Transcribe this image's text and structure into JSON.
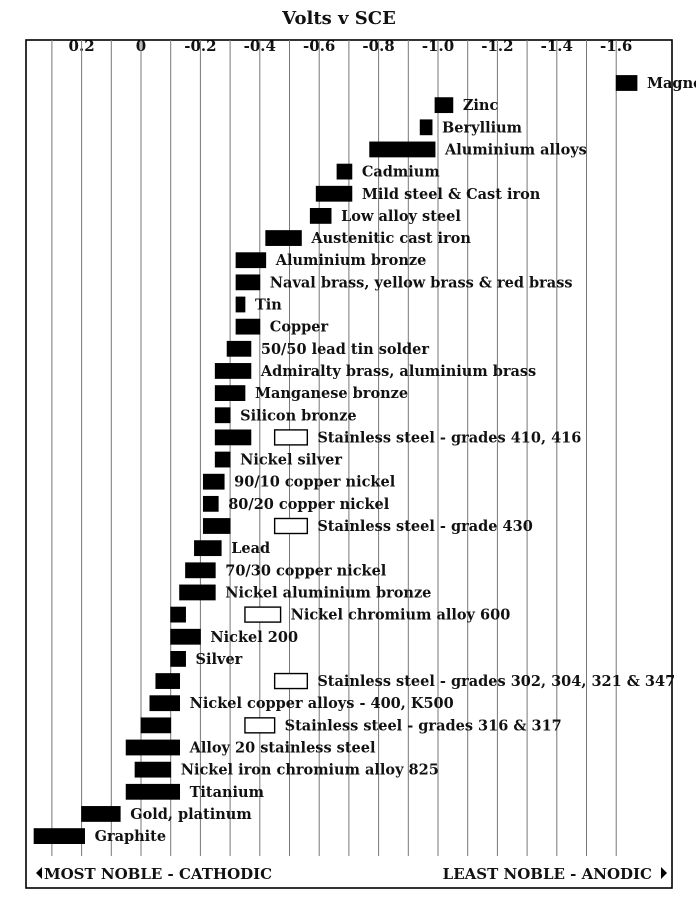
{
  "chart_data": {
    "type": "bar",
    "title": "Volts v SCE",
    "xlim": [
      0.4,
      -1.8
    ],
    "ticks": [
      "0.2",
      "0",
      "-0.2",
      "-0.4",
      "-0.6",
      "-0.8",
      "-1.0",
      "-1.2",
      "-1.4",
      "-1.6"
    ],
    "tick_values": [
      0.2,
      0,
      -0.2,
      -0.4,
      -0.6,
      -0.8,
      -1.0,
      -1.2,
      -1.4,
      -1.6
    ],
    "grid": true,
    "footer_left": "MOST NOBLE - CATHODIC",
    "footer_right": "LEAST NOBLE - ANODIC",
    "series": [
      {
        "label": "Magnesium",
        "ranges": [
          [
            -1.6,
            -1.67
          ]
        ]
      },
      {
        "label": "Zinc",
        "ranges": [
          [
            -0.99,
            -1.05
          ]
        ]
      },
      {
        "label": "Beryllium",
        "ranges": [
          [
            -0.94,
            -0.98
          ]
        ]
      },
      {
        "label": "Aluminium alloys",
        "ranges": [
          [
            -0.77,
            -0.99
          ]
        ]
      },
      {
        "label": "Cadmium",
        "ranges": [
          [
            -0.66,
            -0.71
          ]
        ]
      },
      {
        "label": "Mild steel & Cast iron",
        "ranges": [
          [
            -0.59,
            -0.71
          ]
        ]
      },
      {
        "label": "Low alloy steel",
        "ranges": [
          [
            -0.57,
            -0.64
          ]
        ]
      },
      {
        "label": "Austenitic cast iron",
        "ranges": [
          [
            -0.42,
            -0.54
          ]
        ]
      },
      {
        "label": "Aluminium bronze",
        "ranges": [
          [
            -0.32,
            -0.42
          ]
        ]
      },
      {
        "label": "Naval brass, yellow brass & red brass",
        "ranges": [
          [
            -0.32,
            -0.4
          ]
        ]
      },
      {
        "label": "Tin",
        "ranges": [
          [
            -0.32,
            -0.35
          ]
        ]
      },
      {
        "label": "Copper",
        "ranges": [
          [
            -0.32,
            -0.4
          ]
        ]
      },
      {
        "label": "50/50 lead tin solder",
        "ranges": [
          [
            -0.29,
            -0.37
          ]
        ]
      },
      {
        "label": "Admiralty brass, aluminium brass",
        "ranges": [
          [
            -0.25,
            -0.37
          ]
        ]
      },
      {
        "label": "Manganese bronze",
        "ranges": [
          [
            -0.25,
            -0.35
          ]
        ]
      },
      {
        "label": "Silicon bronze",
        "ranges": [
          [
            -0.25,
            -0.3
          ]
        ]
      },
      {
        "label": "Stainless steel - grades 410, 416",
        "ranges": [
          [
            -0.25,
            -0.37
          ],
          [
            -0.45,
            -0.56
          ]
        ]
      },
      {
        "label": "Nickel silver",
        "ranges": [
          [
            -0.25,
            -0.3
          ]
        ]
      },
      {
        "label": "90/10 copper nickel",
        "ranges": [
          [
            -0.21,
            -0.28
          ]
        ]
      },
      {
        "label": "80/20 copper nickel",
        "ranges": [
          [
            -0.21,
            -0.26
          ]
        ]
      },
      {
        "label": "Stainless steel - grade 430",
        "ranges": [
          [
            -0.21,
            -0.3
          ],
          [
            -0.45,
            -0.56
          ]
        ]
      },
      {
        "label": "Lead",
        "ranges": [
          [
            -0.18,
            -0.27
          ]
        ]
      },
      {
        "label": "70/30 copper nickel",
        "ranges": [
          [
            -0.15,
            -0.25
          ]
        ]
      },
      {
        "label": "Nickel aluminium bronze",
        "ranges": [
          [
            -0.13,
            -0.25
          ]
        ]
      },
      {
        "label": "Nickel chromium alloy 600",
        "ranges": [
          [
            -0.1,
            -0.15
          ],
          [
            -0.35,
            -0.47
          ]
        ]
      },
      {
        "label": "Nickel 200",
        "ranges": [
          [
            -0.1,
            -0.2
          ]
        ]
      },
      {
        "label": "Silver",
        "ranges": [
          [
            -0.1,
            -0.15
          ]
        ]
      },
      {
        "label": "Stainless steel - grades 302, 304, 321 & 347",
        "ranges": [
          [
            -0.05,
            -0.13
          ],
          [
            -0.45,
            -0.56
          ]
        ]
      },
      {
        "label": "Nickel copper alloys - 400, K500",
        "ranges": [
          [
            -0.03,
            -0.13
          ]
        ]
      },
      {
        "label": "Stainless steel - grades 316 & 317",
        "ranges": [
          [
            0.0,
            -0.1
          ],
          [
            -0.35,
            -0.45
          ]
        ]
      },
      {
        "label": "Alloy 20 stainless steel",
        "ranges": [
          [
            0.05,
            -0.13
          ]
        ]
      },
      {
        "label": "Nickel iron chromium alloy 825",
        "ranges": [
          [
            0.02,
            -0.1
          ]
        ]
      },
      {
        "label": "Titanium",
        "ranges": [
          [
            0.05,
            -0.13
          ]
        ]
      },
      {
        "label": "Gold, platinum",
        "ranges": [
          [
            0.2,
            0.07
          ]
        ]
      },
      {
        "label": "Graphite",
        "ranges": [
          [
            0.36,
            0.19
          ]
        ]
      }
    ],
    "bar_styles": [
      "filled",
      "open"
    ],
    "colors": {
      "filled": "#000000",
      "open": "#ffffff",
      "grid": "#777777",
      "frame": "#000000"
    }
  }
}
